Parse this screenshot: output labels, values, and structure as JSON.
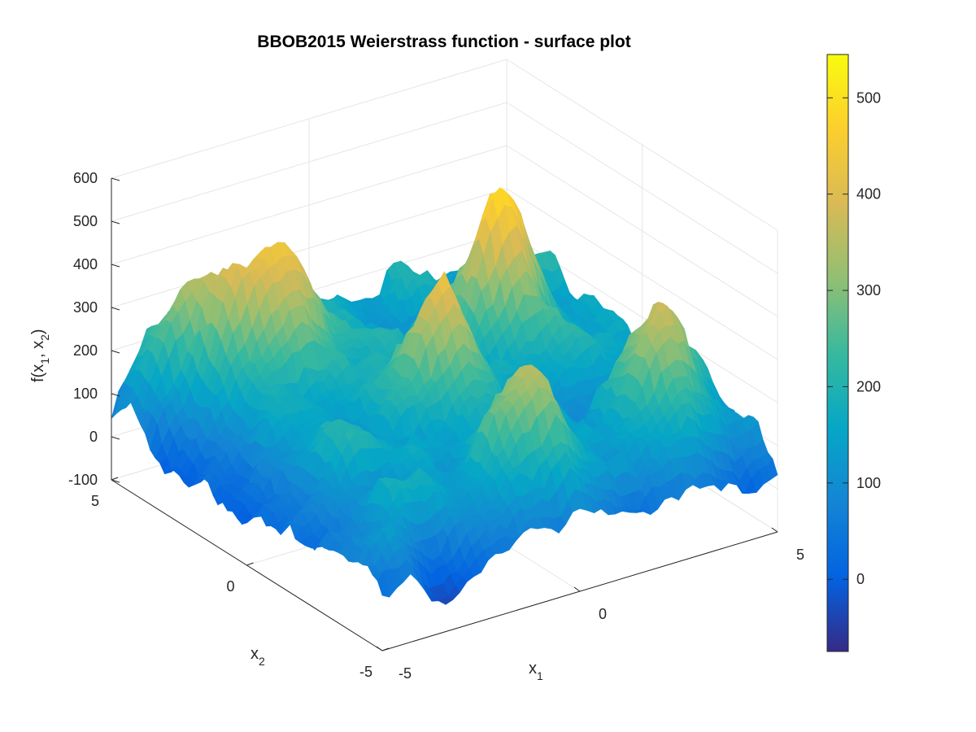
{
  "chart_data": {
    "type": "surface",
    "title": "BBOB2015 Weierstrass function - surface plot",
    "xlabel": {
      "main": "x",
      "sub": "1"
    },
    "ylabel": {
      "main": "x",
      "sub": "2"
    },
    "zlabel": {
      "pre": "f(x",
      "sub1": "1",
      "mid": ", x",
      "sub2": "2",
      "post": ")"
    },
    "xlim": [
      -5,
      5
    ],
    "ylim": [
      -5,
      5
    ],
    "zlim": [
      -100,
      600
    ],
    "x_ticks": [
      "-5",
      "0",
      "5"
    ],
    "y_ticks": [
      "-5",
      "0",
      "5"
    ],
    "z_ticks": [
      "-100",
      "0",
      "100",
      "200",
      "300",
      "400",
      "500",
      "600"
    ],
    "grid": true,
    "colormap": "parula",
    "colorbar": {
      "location": "right",
      "range": [
        -75,
        545
      ],
      "ticks": [
        "0",
        "100",
        "200",
        "300",
        "400",
        "500"
      ]
    },
    "peaks": [
      {
        "x": -2.2,
        "y": 3.0,
        "z": 450
      },
      {
        "x": 2.6,
        "y": 1.8,
        "z": 525
      },
      {
        "x": 3.5,
        "y": -3.0,
        "z": 400
      },
      {
        "x": 0.0,
        "y": 0.0,
        "z": 380
      },
      {
        "x": -0.2,
        "y": -3.3,
        "z": 370
      },
      {
        "x": -3.5,
        "y": 4.3,
        "z": 340
      }
    ]
  },
  "colors": {
    "grid": "#e6e6e6",
    "axis": "#262626",
    "background": "#ffffff"
  }
}
